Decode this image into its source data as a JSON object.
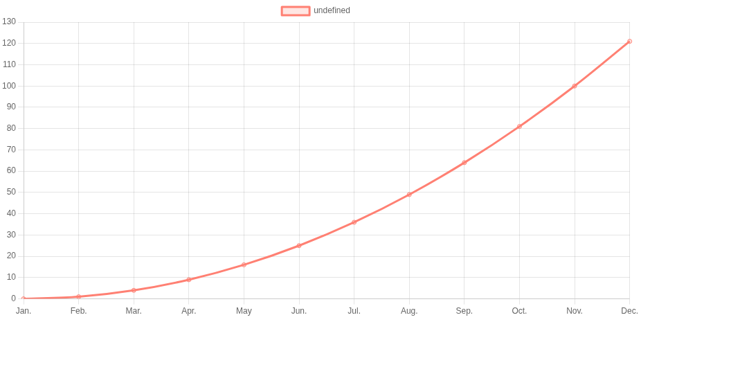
{
  "chart_data": {
    "type": "line",
    "categories": [
      "Jan.",
      "Feb.",
      "Mar.",
      "Apr.",
      "May",
      "Jun.",
      "Jul.",
      "Aug.",
      "Sep.",
      "Oct.",
      "Nov.",
      "Dec."
    ],
    "series": [
      {
        "name": "undefined",
        "color": "#ff8073",
        "values": [
          0,
          1,
          4,
          9,
          16,
          25,
          36,
          49,
          64,
          81,
          100,
          121
        ]
      }
    ],
    "ylim": [
      0,
      130
    ],
    "yticks": [
      0,
      10,
      20,
      30,
      40,
      50,
      60,
      70,
      80,
      90,
      100,
      110,
      120,
      130
    ],
    "grid": true,
    "legend": "top",
    "marker": "circle",
    "line_style": "solid"
  }
}
